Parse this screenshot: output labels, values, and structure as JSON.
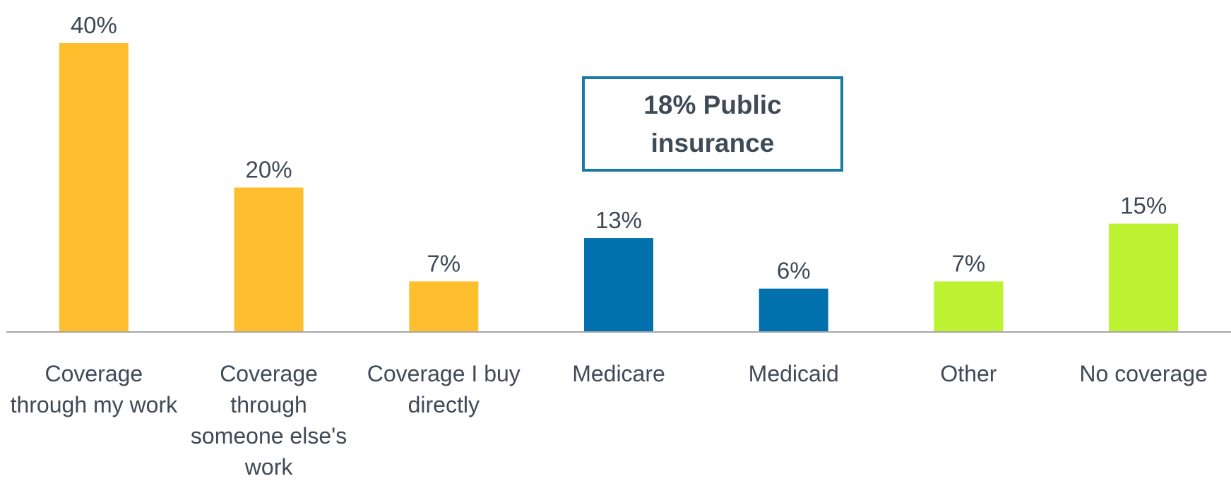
{
  "chart_data": {
    "type": "bar",
    "categories": [
      "Coverage through my work",
      "Coverage through someone else's work",
      "Coverage I buy directly",
      "Medicare",
      "Medicaid",
      "Other",
      "No coverage"
    ],
    "values": [
      40,
      20,
      7,
      13,
      6,
      7,
      15
    ],
    "value_labels": [
      "40%",
      "20%",
      "7%",
      "13%",
      "6%",
      "7%",
      "15%"
    ],
    "colors": [
      "#fdbf2d",
      "#fdbf2d",
      "#fdbf2d",
      "#0071ad",
      "#0071ad",
      "#bdf232",
      "#bdf232"
    ],
    "ylim": [
      0,
      40
    ],
    "annotation": "18% Public insurance"
  }
}
